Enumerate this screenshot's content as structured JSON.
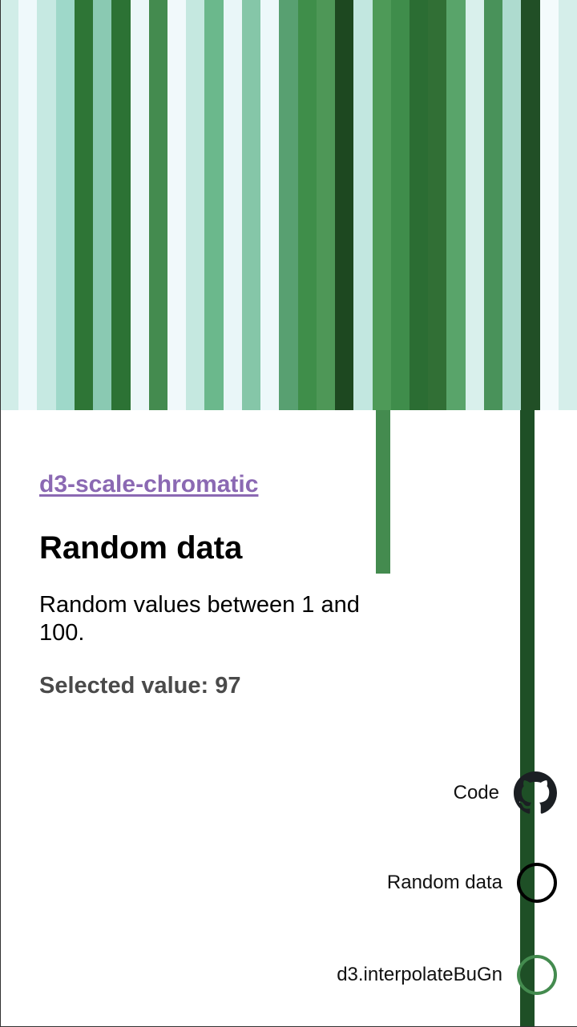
{
  "palette": [
    "#f7fcfd",
    "#e5f5f9",
    "#ccece6",
    "#99d8c9",
    "#66c2a4",
    "#41ae76",
    "#238b45",
    "#006d2c",
    "#00441b"
  ],
  "stripes": [
    "#d1ede8",
    "#eff9fb",
    "#c6e9e2",
    "#9ed8c9",
    "#2e7536",
    "#8ac9b2",
    "#2c7234",
    "#ecf7f9",
    "#448b4f",
    "#f1f9fb",
    "#c5e8e0",
    "#6bb88c",
    "#e9f6f8",
    "#85c6a8",
    "#edf8fa",
    "#58a071",
    "#3f8e4a",
    "#4e9757",
    "#1d4820",
    "#c2e7e0",
    "#4e9a58",
    "#3f8d4b",
    "#2b6d33",
    "#316f35",
    "#59a46a",
    "#d9f0ec",
    "#49925a",
    "#aedbcf",
    "#214f26",
    "#f4fbfc",
    "#d5eeea"
  ],
  "selected_bar_color": "#448b4f",
  "selected_line_color": "#1e4f26",
  "link": {
    "label": "d3-scale-chromatic",
    "color": "#8b69b3"
  },
  "page": {
    "title": "Random data",
    "description": "Random values between 1 and 100.",
    "selected_value": "Selected value: 97"
  },
  "side_nav": {
    "code_label": "Code",
    "dataset_label": "Random data",
    "interpolator_label": "d3.interpolateBuGn",
    "interpolator_color": "#448b4f"
  }
}
